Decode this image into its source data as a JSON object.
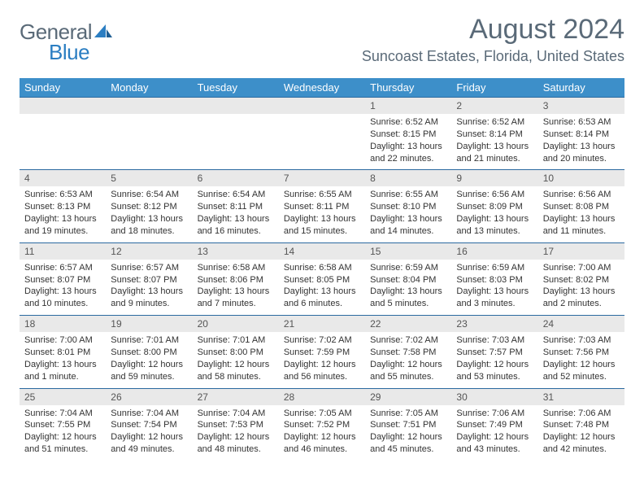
{
  "brand": {
    "part1": "General",
    "part2": "Blue"
  },
  "title": "August 2024",
  "location": "Suncoast Estates, Florida, United States",
  "colors": {
    "header_bg": "#3d8fc9",
    "header_text": "#ffffff",
    "daynum_bg": "#e9e9e9",
    "rule": "#2b6aa0",
    "text": "#333333",
    "muted": "#5a6a78",
    "brand_blue": "#2b7ec2"
  },
  "day_headers": [
    "Sunday",
    "Monday",
    "Tuesday",
    "Wednesday",
    "Thursday",
    "Friday",
    "Saturday"
  ],
  "weeks": [
    [
      null,
      null,
      null,
      null,
      {
        "n": "1",
        "sr": "Sunrise: 6:52 AM",
        "ss": "Sunset: 8:15 PM",
        "dl": "Daylight: 13 hours and 22 minutes."
      },
      {
        "n": "2",
        "sr": "Sunrise: 6:52 AM",
        "ss": "Sunset: 8:14 PM",
        "dl": "Daylight: 13 hours and 21 minutes."
      },
      {
        "n": "3",
        "sr": "Sunrise: 6:53 AM",
        "ss": "Sunset: 8:14 PM",
        "dl": "Daylight: 13 hours and 20 minutes."
      }
    ],
    [
      {
        "n": "4",
        "sr": "Sunrise: 6:53 AM",
        "ss": "Sunset: 8:13 PM",
        "dl": "Daylight: 13 hours and 19 minutes."
      },
      {
        "n": "5",
        "sr": "Sunrise: 6:54 AM",
        "ss": "Sunset: 8:12 PM",
        "dl": "Daylight: 13 hours and 18 minutes."
      },
      {
        "n": "6",
        "sr": "Sunrise: 6:54 AM",
        "ss": "Sunset: 8:11 PM",
        "dl": "Daylight: 13 hours and 16 minutes."
      },
      {
        "n": "7",
        "sr": "Sunrise: 6:55 AM",
        "ss": "Sunset: 8:11 PM",
        "dl": "Daylight: 13 hours and 15 minutes."
      },
      {
        "n": "8",
        "sr": "Sunrise: 6:55 AM",
        "ss": "Sunset: 8:10 PM",
        "dl": "Daylight: 13 hours and 14 minutes."
      },
      {
        "n": "9",
        "sr": "Sunrise: 6:56 AM",
        "ss": "Sunset: 8:09 PM",
        "dl": "Daylight: 13 hours and 13 minutes."
      },
      {
        "n": "10",
        "sr": "Sunrise: 6:56 AM",
        "ss": "Sunset: 8:08 PM",
        "dl": "Daylight: 13 hours and 11 minutes."
      }
    ],
    [
      {
        "n": "11",
        "sr": "Sunrise: 6:57 AM",
        "ss": "Sunset: 8:07 PM",
        "dl": "Daylight: 13 hours and 10 minutes."
      },
      {
        "n": "12",
        "sr": "Sunrise: 6:57 AM",
        "ss": "Sunset: 8:07 PM",
        "dl": "Daylight: 13 hours and 9 minutes."
      },
      {
        "n": "13",
        "sr": "Sunrise: 6:58 AM",
        "ss": "Sunset: 8:06 PM",
        "dl": "Daylight: 13 hours and 7 minutes."
      },
      {
        "n": "14",
        "sr": "Sunrise: 6:58 AM",
        "ss": "Sunset: 8:05 PM",
        "dl": "Daylight: 13 hours and 6 minutes."
      },
      {
        "n": "15",
        "sr": "Sunrise: 6:59 AM",
        "ss": "Sunset: 8:04 PM",
        "dl": "Daylight: 13 hours and 5 minutes."
      },
      {
        "n": "16",
        "sr": "Sunrise: 6:59 AM",
        "ss": "Sunset: 8:03 PM",
        "dl": "Daylight: 13 hours and 3 minutes."
      },
      {
        "n": "17",
        "sr": "Sunrise: 7:00 AM",
        "ss": "Sunset: 8:02 PM",
        "dl": "Daylight: 13 hours and 2 minutes."
      }
    ],
    [
      {
        "n": "18",
        "sr": "Sunrise: 7:00 AM",
        "ss": "Sunset: 8:01 PM",
        "dl": "Daylight: 13 hours and 1 minute."
      },
      {
        "n": "19",
        "sr": "Sunrise: 7:01 AM",
        "ss": "Sunset: 8:00 PM",
        "dl": "Daylight: 12 hours and 59 minutes."
      },
      {
        "n": "20",
        "sr": "Sunrise: 7:01 AM",
        "ss": "Sunset: 8:00 PM",
        "dl": "Daylight: 12 hours and 58 minutes."
      },
      {
        "n": "21",
        "sr": "Sunrise: 7:02 AM",
        "ss": "Sunset: 7:59 PM",
        "dl": "Daylight: 12 hours and 56 minutes."
      },
      {
        "n": "22",
        "sr": "Sunrise: 7:02 AM",
        "ss": "Sunset: 7:58 PM",
        "dl": "Daylight: 12 hours and 55 minutes."
      },
      {
        "n": "23",
        "sr": "Sunrise: 7:03 AM",
        "ss": "Sunset: 7:57 PM",
        "dl": "Daylight: 12 hours and 53 minutes."
      },
      {
        "n": "24",
        "sr": "Sunrise: 7:03 AM",
        "ss": "Sunset: 7:56 PM",
        "dl": "Daylight: 12 hours and 52 minutes."
      }
    ],
    [
      {
        "n": "25",
        "sr": "Sunrise: 7:04 AM",
        "ss": "Sunset: 7:55 PM",
        "dl": "Daylight: 12 hours and 51 minutes."
      },
      {
        "n": "26",
        "sr": "Sunrise: 7:04 AM",
        "ss": "Sunset: 7:54 PM",
        "dl": "Daylight: 12 hours and 49 minutes."
      },
      {
        "n": "27",
        "sr": "Sunrise: 7:04 AM",
        "ss": "Sunset: 7:53 PM",
        "dl": "Daylight: 12 hours and 48 minutes."
      },
      {
        "n": "28",
        "sr": "Sunrise: 7:05 AM",
        "ss": "Sunset: 7:52 PM",
        "dl": "Daylight: 12 hours and 46 minutes."
      },
      {
        "n": "29",
        "sr": "Sunrise: 7:05 AM",
        "ss": "Sunset: 7:51 PM",
        "dl": "Daylight: 12 hours and 45 minutes."
      },
      {
        "n": "30",
        "sr": "Sunrise: 7:06 AM",
        "ss": "Sunset: 7:49 PM",
        "dl": "Daylight: 12 hours and 43 minutes."
      },
      {
        "n": "31",
        "sr": "Sunrise: 7:06 AM",
        "ss": "Sunset: 7:48 PM",
        "dl": "Daylight: 12 hours and 42 minutes."
      }
    ]
  ]
}
